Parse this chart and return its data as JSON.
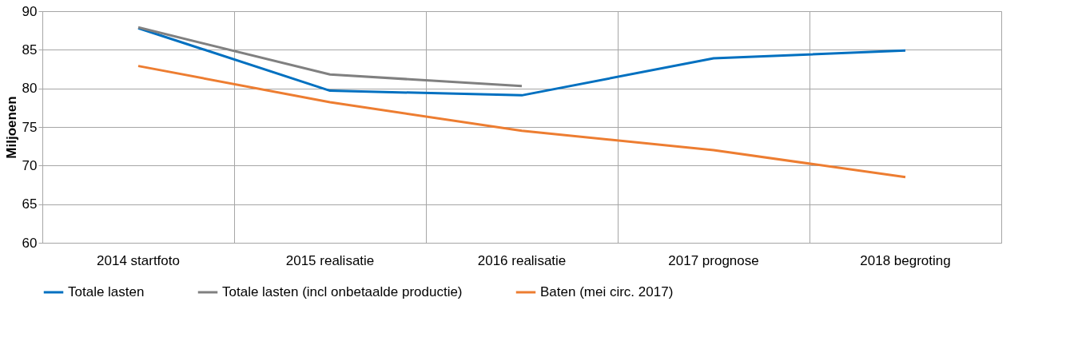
{
  "chart_data": {
    "type": "line",
    "ylabel": "Miljoenen",
    "categories": [
      "2014 startfoto",
      "2015 realisatie",
      "2016 realisatie",
      "2017 prognose",
      "2018 begroting"
    ],
    "series": [
      {
        "name": "Totale lasten",
        "color": "#0070c0",
        "values": [
          87.8,
          79.7,
          79.1,
          83.9,
          84.9
        ]
      },
      {
        "name": "Totale lasten (incl onbetaalde productie)",
        "color": "#808080",
        "values": [
          87.9,
          81.8,
          80.3,
          null,
          null
        ]
      },
      {
        "name": "Baten (mei circ. 2017)",
        "color": "#ed7d31",
        "values": [
          82.9,
          78.2,
          74.5,
          72.0,
          68.5
        ]
      }
    ],
    "ylim": [
      60,
      90
    ],
    "yticks": [
      60,
      65,
      70,
      75,
      80,
      85,
      90
    ],
    "grid": true,
    "legend": "bottom",
    "marker": "none",
    "line_style": "solid"
  }
}
